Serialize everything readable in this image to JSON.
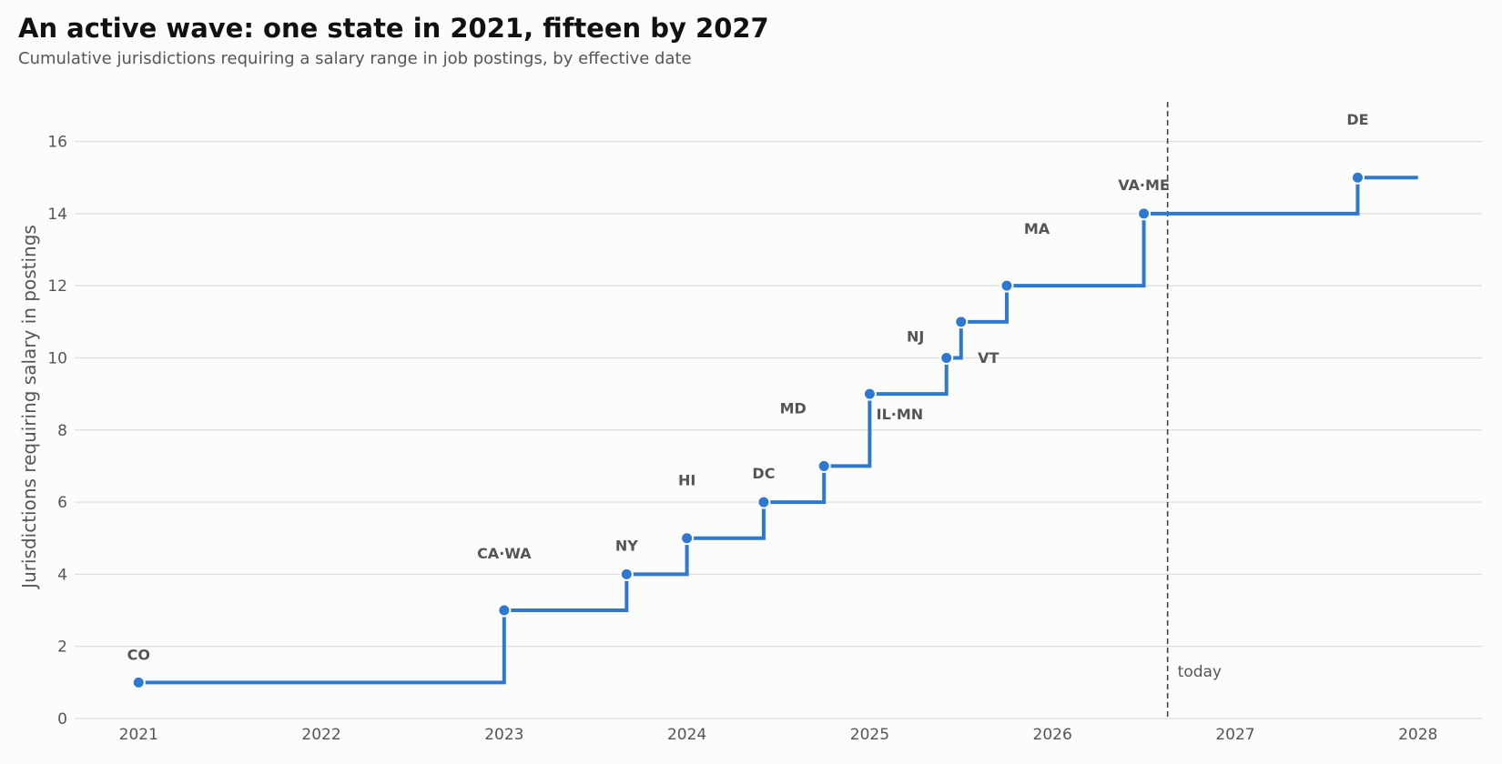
{
  "title": "An active wave: one state in 2021, fifteen by 2027",
  "subtitle": "Cumulative jurisdictions requiring a salary range in job postings, by effective date",
  "colors": {
    "line": "#2f78d0",
    "grid": "#dddddd",
    "text": "#555555",
    "background": "#fcfcfa"
  },
  "chart_data": {
    "type": "line",
    "style": "step-post",
    "title": "An active wave: one state in 2021, fifteen by 2027",
    "subtitle": "Cumulative jurisdictions requiring a salary range in job postings, by effective date",
    "xlabel": "",
    "ylabel": "Jurisdictions requiring salary in postings",
    "xlim": [
      2020.65,
      2028.35
    ],
    "ylim": [
      0,
      17.3
    ],
    "xticks": [
      2021,
      2022,
      2023,
      2024,
      2025,
      2026,
      2027,
      2028
    ],
    "yticks": [
      0,
      2,
      4,
      6,
      8,
      10,
      12,
      14,
      16
    ],
    "grid": "horizontal",
    "points": [
      {
        "x": 2021.0,
        "y": 1,
        "label": "CO"
      },
      {
        "x": 2023.0,
        "y": 3,
        "label": "CA·WA"
      },
      {
        "x": 2023.67,
        "y": 4,
        "label": "NY"
      },
      {
        "x": 2024.0,
        "y": 5,
        "label": "HI"
      },
      {
        "x": 2024.42,
        "y": 6,
        "label": "DC"
      },
      {
        "x": 2024.75,
        "y": 7,
        "label": "MD"
      },
      {
        "x": 2025.0,
        "y": 9,
        "label": "IL·MN"
      },
      {
        "x": 2025.42,
        "y": 10,
        "label": "NJ"
      },
      {
        "x": 2025.5,
        "y": 11,
        "label": "VT"
      },
      {
        "x": 2025.75,
        "y": 12,
        "label": "MA"
      },
      {
        "x": 2026.5,
        "y": 14,
        "label": "VA·ME"
      },
      {
        "x": 2027.67,
        "y": 15,
        "label": "DE"
      }
    ],
    "line_end_x": 2028.0,
    "reference_line": {
      "x": 2026.63,
      "label": "today",
      "style": "dashed"
    }
  }
}
